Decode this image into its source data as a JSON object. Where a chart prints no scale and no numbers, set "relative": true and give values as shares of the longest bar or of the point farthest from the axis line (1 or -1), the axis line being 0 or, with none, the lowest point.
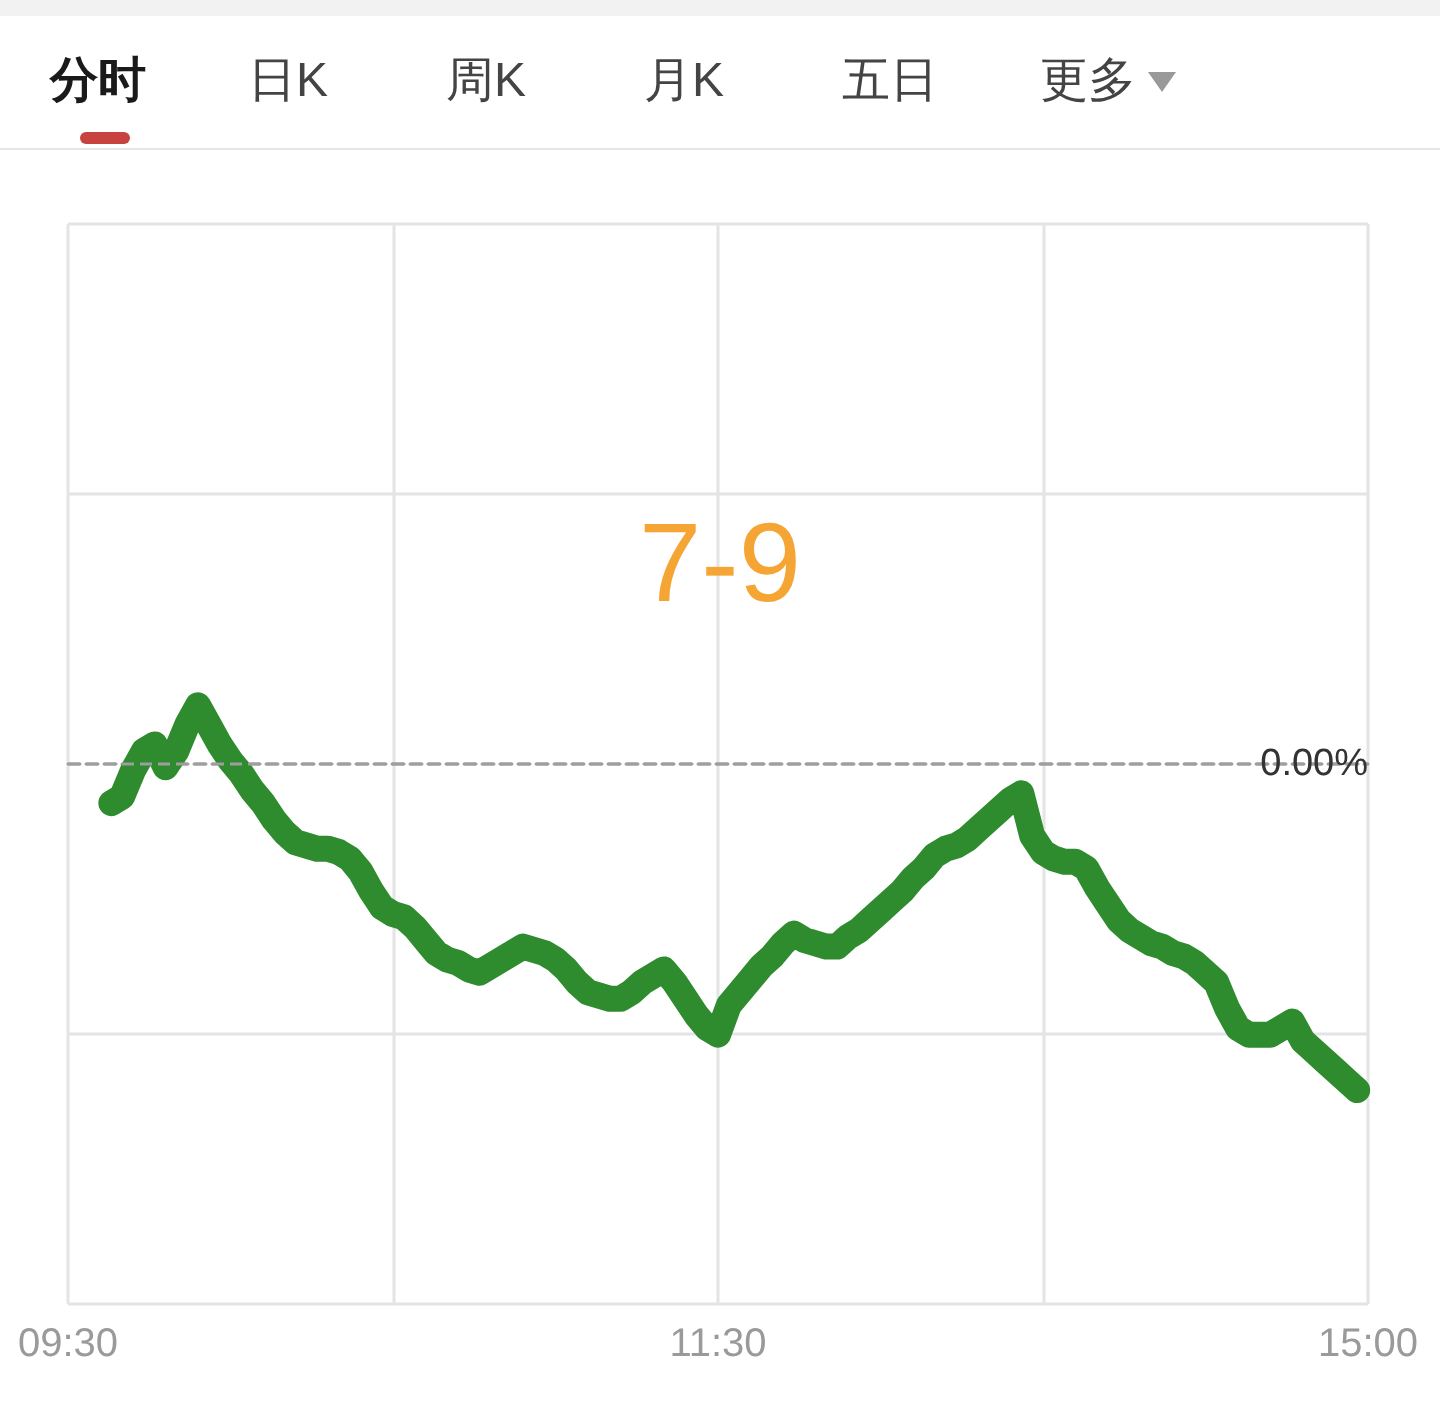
{
  "chart_data": {
    "type": "line",
    "title": "7-9",
    "annotations": [
      "分时",
      "日K",
      "周K",
      "月K",
      "五日",
      "更多"
    ],
    "relative": true,
    "tick_labels": "x",
    "grid": true,
    "marker": "none",
    "line_style": "solid",
    "categories": [
      "09:30",
      null,
      null,
      null,
      null,
      null,
      null,
      null,
      null,
      null,
      null,
      null,
      null,
      null,
      null,
      null,
      null,
      null,
      null,
      null,
      null,
      null,
      null,
      null,
      null,
      null,
      null,
      null,
      null,
      null,
      null,
      null,
      null,
      null,
      null,
      null,
      null,
      null,
      null,
      null,
      null,
      null,
      null,
      null,
      null,
      null,
      null,
      null,
      null,
      null,
      null,
      null,
      null,
      null,
      null,
      null,
      null,
      null,
      null,
      null,
      "11:30",
      null,
      null,
      null,
      null,
      null,
      null,
      null,
      null,
      null,
      null,
      null,
      null,
      null,
      null,
      null,
      null,
      null,
      null,
      null,
      null,
      null,
      null,
      null,
      null,
      null,
      null,
      null,
      null,
      null,
      null,
      null,
      null,
      null,
      null,
      null,
      null,
      null,
      null,
      null,
      null,
      null,
      null,
      null,
      null,
      null,
      null,
      null,
      null,
      null,
      null,
      null,
      null,
      null,
      null,
      null,
      null,
      null,
      null,
      null,
      "15:00"
    ],
    "series": [
      {
        "color": "#2e8b2e",
        "values": [
          null,
          null,
          null,
          null,
          -0.12,
          -0.1,
          -0.02,
          0.04,
          0.06,
          -0.01,
          0.04,
          0.12,
          0.18,
          0.12,
          0.06,
          0.01,
          -0.03,
          -0.08,
          -0.12,
          -0.17,
          -0.21,
          -0.24,
          -0.25,
          -0.26,
          -0.26,
          -0.27,
          -0.29,
          -0.33,
          -0.39,
          -0.44,
          -0.46,
          -0.47,
          -0.5,
          -0.54,
          -0.58,
          -0.6,
          -0.61,
          -0.63,
          -0.64,
          -0.62,
          -0.6,
          -0.58,
          -0.56,
          -0.57,
          -0.58,
          -0.6,
          -0.63,
          -0.67,
          -0.7,
          -0.71,
          -0.72,
          -0.72,
          -0.7,
          -0.67,
          -0.65,
          -0.63,
          -0.67,
          -0.72,
          -0.77,
          -0.81,
          -0.83,
          -0.74,
          -0.7,
          -0.66,
          -0.62,
          -0.59,
          -0.55,
          -0.52,
          -0.54,
          -0.55,
          -0.56,
          -0.56,
          -0.53,
          -0.51,
          -0.48,
          -0.45,
          -0.42,
          -0.39,
          -0.35,
          -0.32,
          -0.28,
          -0.26,
          -0.25,
          -0.23,
          -0.2,
          -0.17,
          -0.14,
          -0.11,
          -0.09,
          -0.22,
          -0.27,
          -0.29,
          -0.3,
          -0.3,
          -0.32,
          -0.38,
          -0.43,
          -0.48,
          -0.51,
          -0.53,
          -0.55,
          -0.56,
          -0.58,
          -0.59,
          -0.61,
          -0.64,
          -0.67,
          -0.75,
          -0.81,
          -0.83,
          -0.83,
          -0.83,
          -0.81,
          -0.79,
          -0.85,
          -0.88,
          -0.91,
          -0.94,
          -0.97,
          -1,
          null
        ]
      }
    ],
    "ref_lines": [
      {
        "axis": "y",
        "value": 0,
        "label": "0.00%",
        "color": "#9e9e9e",
        "line_style": "dashed"
      }
    ]
  }
}
